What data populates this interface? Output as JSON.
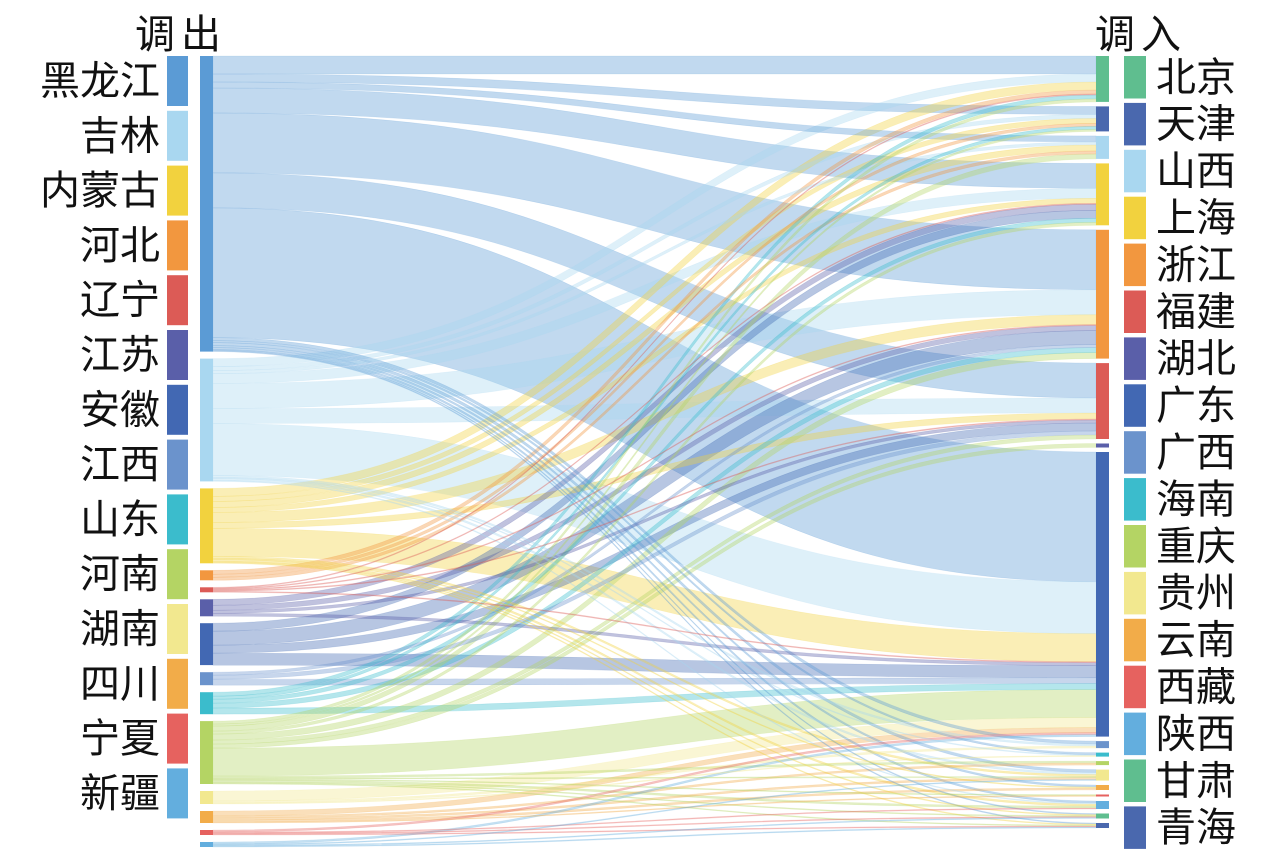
{
  "chart_data": {
    "type": "sankey",
    "left_header": "调出",
    "right_header": "调入",
    "orientation": "left-to-right",
    "sources": [
      {
        "name": "黑龙江",
        "color": "#5B9BD5"
      },
      {
        "name": "吉林",
        "color": "#A9D7F0"
      },
      {
        "name": "内蒙古",
        "color": "#F2D23E"
      },
      {
        "name": "河北",
        "color": "#F2973F"
      },
      {
        "name": "辽宁",
        "color": "#DC5B56"
      },
      {
        "name": "江苏",
        "color": "#5A5FA9"
      },
      {
        "name": "安徽",
        "color": "#4268B3"
      },
      {
        "name": "江西",
        "color": "#6B93CC"
      },
      {
        "name": "山东",
        "color": "#3BBCCC"
      },
      {
        "name": "河南",
        "color": "#B4D464"
      },
      {
        "name": "湖南",
        "color": "#F2E88F"
      },
      {
        "name": "四川",
        "color": "#F2AC49"
      },
      {
        "name": "宁夏",
        "color": "#E6625F"
      },
      {
        "name": "新疆",
        "color": "#63AEDE"
      }
    ],
    "targets": [
      {
        "name": "北京",
        "color": "#5FBE8F"
      },
      {
        "name": "天津",
        "color": "#4A68AE"
      },
      {
        "name": "山西",
        "color": "#A9D7F0"
      },
      {
        "name": "上海",
        "color": "#F2D23E"
      },
      {
        "name": "浙江",
        "color": "#F2973F"
      },
      {
        "name": "福建",
        "color": "#DC5B56"
      },
      {
        "name": "湖北",
        "color": "#5A5FA9"
      },
      {
        "name": "广东",
        "color": "#4268B3"
      },
      {
        "name": "广西",
        "color": "#6B93CC"
      },
      {
        "name": "海南",
        "color": "#3BBCCC"
      },
      {
        "name": "重庆",
        "color": "#B4D464"
      },
      {
        "name": "贵州",
        "color": "#F2E88F"
      },
      {
        "name": "云南",
        "color": "#F2AC49"
      },
      {
        "name": "西藏",
        "color": "#E6625F"
      },
      {
        "name": "陕西",
        "color": "#63AEDE"
      },
      {
        "name": "甘肃",
        "color": "#5FBE8F"
      },
      {
        "name": "青海",
        "color": "#4A68AE"
      }
    ],
    "links": [
      {
        "source": "黑龙江",
        "target": "北京",
        "value": 18
      },
      {
        "source": "黑龙江",
        "target": "天津",
        "value": 8
      },
      {
        "source": "黑龙江",
        "target": "山西",
        "value": 6
      },
      {
        "source": "黑龙江",
        "target": "上海",
        "value": 25
      },
      {
        "source": "黑龙江",
        "target": "浙江",
        "value": 60
      },
      {
        "source": "黑龙江",
        "target": "福建",
        "value": 35
      },
      {
        "source": "黑龙江",
        "target": "广东",
        "value": 130
      },
      {
        "source": "黑龙江",
        "target": "广西",
        "value": 3
      },
      {
        "source": "黑龙江",
        "target": "海南",
        "value": 2
      },
      {
        "source": "黑龙江",
        "target": "贵州",
        "value": 3
      },
      {
        "source": "黑龙江",
        "target": "云南",
        "value": 2
      },
      {
        "source": "黑龙江",
        "target": "陕西",
        "value": 2
      },
      {
        "source": "黑龙江",
        "target": "甘肃",
        "value": 1
      },
      {
        "source": "黑龙江",
        "target": "青海",
        "value": 1
      },
      {
        "source": "吉林",
        "target": "北京",
        "value": 8
      },
      {
        "source": "吉林",
        "target": "天津",
        "value": 4
      },
      {
        "source": "吉林",
        "target": "山西",
        "value": 3
      },
      {
        "source": "吉林",
        "target": "上海",
        "value": 10
      },
      {
        "source": "吉林",
        "target": "浙江",
        "value": 25
      },
      {
        "source": "吉林",
        "target": "福建",
        "value": 15
      },
      {
        "source": "吉林",
        "target": "广东",
        "value": 52
      },
      {
        "source": "吉林",
        "target": "广西",
        "value": 2
      },
      {
        "source": "吉林",
        "target": "海南",
        "value": 1
      },
      {
        "source": "吉林",
        "target": "贵州",
        "value": 2
      },
      {
        "source": "吉林",
        "target": "陕西",
        "value": 1
      },
      {
        "source": "内蒙古",
        "target": "北京",
        "value": 8
      },
      {
        "source": "内蒙古",
        "target": "天津",
        "value": 5
      },
      {
        "source": "内蒙古",
        "target": "山西",
        "value": 6
      },
      {
        "source": "内蒙古",
        "target": "上海",
        "value": 5
      },
      {
        "source": "内蒙古",
        "target": "浙江",
        "value": 10
      },
      {
        "source": "内蒙古",
        "target": "福建",
        "value": 6
      },
      {
        "source": "内蒙古",
        "target": "广东",
        "value": 28
      },
      {
        "source": "内蒙古",
        "target": "贵州",
        "value": 2
      },
      {
        "source": "内蒙古",
        "target": "云南",
        "value": 1
      },
      {
        "source": "内蒙古",
        "target": "陕西",
        "value": 2
      },
      {
        "source": "内蒙古",
        "target": "甘肃",
        "value": 1
      },
      {
        "source": "内蒙古",
        "target": "青海",
        "value": 1
      },
      {
        "source": "河北",
        "target": "北京",
        "value": 4
      },
      {
        "source": "河北",
        "target": "天津",
        "value": 3
      },
      {
        "source": "河北",
        "target": "山西",
        "value": 3
      },
      {
        "source": "辽宁",
        "target": "北京",
        "value": 1
      },
      {
        "source": "辽宁",
        "target": "上海",
        "value": 1
      },
      {
        "source": "辽宁",
        "target": "浙江",
        "value": 1
      },
      {
        "source": "辽宁",
        "target": "福建",
        "value": 1
      },
      {
        "source": "辽宁",
        "target": "广东",
        "value": 1
      },
      {
        "source": "江苏",
        "target": "上海",
        "value": 6
      },
      {
        "source": "江苏",
        "target": "浙江",
        "value": 5
      },
      {
        "source": "江苏",
        "target": "福建",
        "value": 3
      },
      {
        "source": "江苏",
        "target": "广东",
        "value": 3
      },
      {
        "source": "安徽",
        "target": "上海",
        "value": 8
      },
      {
        "source": "安徽",
        "target": "浙江",
        "value": 14
      },
      {
        "source": "安徽",
        "target": "福建",
        "value": 8
      },
      {
        "source": "安徽",
        "target": "广东",
        "value": 12
      },
      {
        "source": "江西",
        "target": "浙江",
        "value": 3
      },
      {
        "source": "江西",
        "target": "福建",
        "value": 4
      },
      {
        "source": "江西",
        "target": "广东",
        "value": 6
      },
      {
        "source": "山东",
        "target": "北京",
        "value": 4
      },
      {
        "source": "山东",
        "target": "天津",
        "value": 3
      },
      {
        "source": "山东",
        "target": "上海",
        "value": 4
      },
      {
        "source": "山东",
        "target": "浙江",
        "value": 5
      },
      {
        "source": "山东",
        "target": "广东",
        "value": 6
      },
      {
        "source": "河南",
        "target": "北京",
        "value": 3
      },
      {
        "source": "河南",
        "target": "天津",
        "value": 2
      },
      {
        "source": "河南",
        "target": "山西",
        "value": 5
      },
      {
        "source": "河南",
        "target": "上海",
        "value": 3
      },
      {
        "source": "河南",
        "target": "浙江",
        "value": 6
      },
      {
        "source": "河南",
        "target": "福建",
        "value": 4
      },
      {
        "source": "河南",
        "target": "湖北",
        "value": 4
      },
      {
        "source": "河南",
        "target": "广东",
        "value": 28
      },
      {
        "source": "河南",
        "target": "重庆",
        "value": 2
      },
      {
        "source": "河南",
        "target": "贵州",
        "value": 1
      },
      {
        "source": "河南",
        "target": "西藏",
        "value": 1
      },
      {
        "source": "河南",
        "target": "陕西",
        "value": 2
      },
      {
        "source": "河南",
        "target": "甘肃",
        "value": 1
      },
      {
        "source": "河南",
        "target": "青海",
        "value": 1
      },
      {
        "source": "湖南",
        "target": "广东",
        "value": 10
      },
      {
        "source": "湖南",
        "target": "广西",
        "value": 2
      },
      {
        "source": "湖南",
        "target": "海南",
        "value": 1
      },
      {
        "source": "四川",
        "target": "广东",
        "value": 5
      },
      {
        "source": "四川",
        "target": "重庆",
        "value": 2
      },
      {
        "source": "四川",
        "target": "贵州",
        "value": 2
      },
      {
        "source": "四川",
        "target": "云南",
        "value": 2
      },
      {
        "source": "四川",
        "target": "西藏",
        "value": 1
      },
      {
        "source": "宁夏",
        "target": "广东",
        "value": 2
      },
      {
        "source": "宁夏",
        "target": "陕西",
        "value": 1
      },
      {
        "source": "宁夏",
        "target": "甘肃",
        "value": 1
      },
      {
        "source": "宁夏",
        "target": "青海",
        "value": 1
      },
      {
        "source": "新疆",
        "target": "广东",
        "value": 2
      },
      {
        "source": "新疆",
        "target": "贵州",
        "value": 1
      },
      {
        "source": "新疆",
        "target": "甘肃",
        "value": 1
      },
      {
        "source": "新疆",
        "target": "青海",
        "value": 1
      }
    ]
  }
}
